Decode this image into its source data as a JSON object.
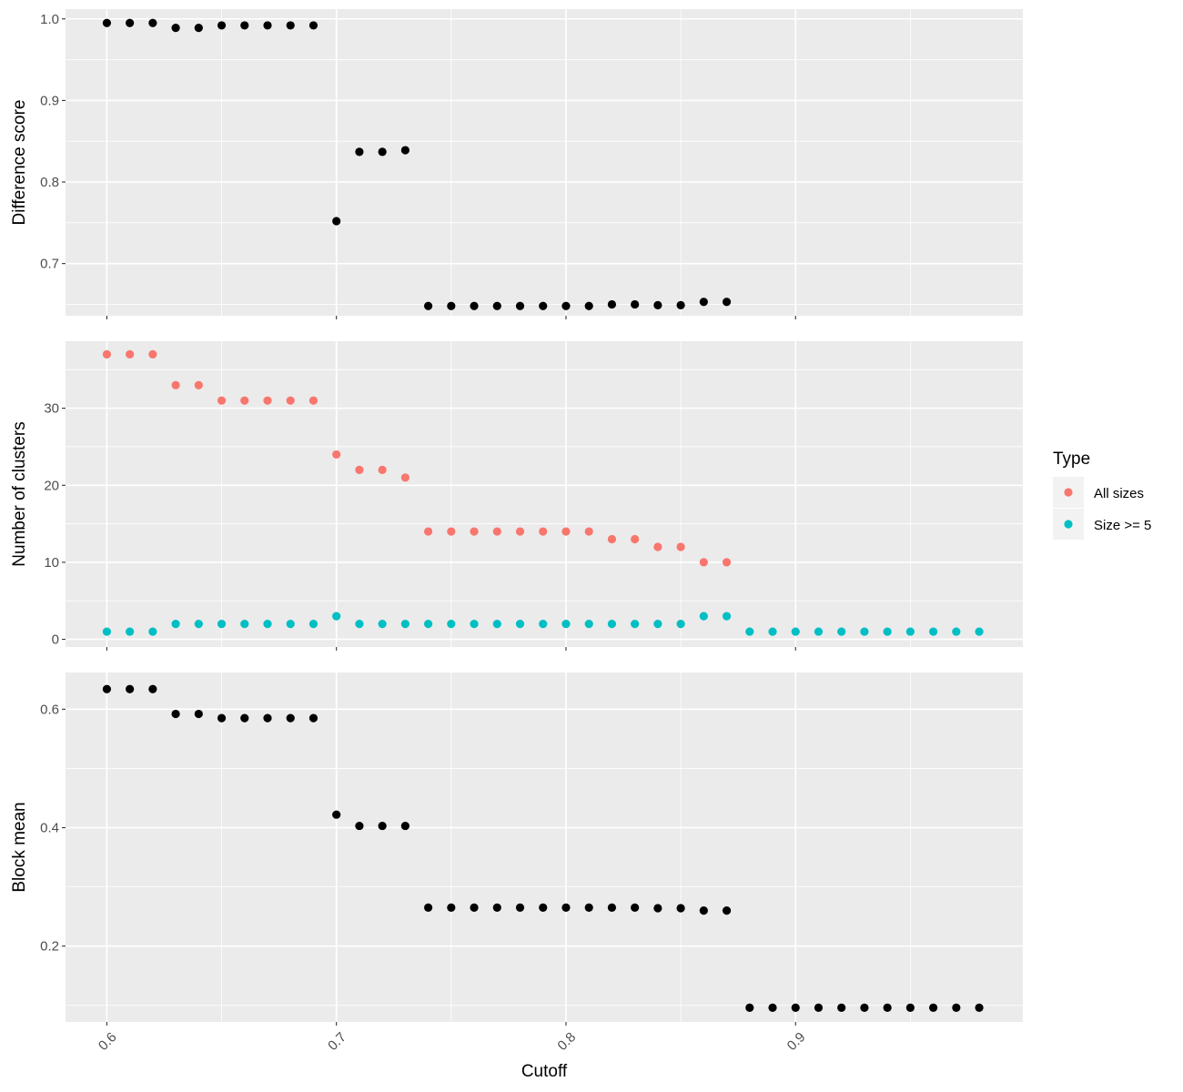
{
  "chart_data": [
    {
      "type": "scatter",
      "xlabel": "",
      "ylabel": "Difference score",
      "xlim": [
        0.582,
        0.999
      ],
      "ylim": [
        0.636,
        1.012
      ],
      "yticks": [
        0.7,
        0.8,
        0.9,
        1.0
      ],
      "ytick_labels": [
        "0.7",
        "0.8",
        "0.9",
        "1.0"
      ],
      "xticks": [
        0.6,
        0.7,
        0.8,
        0.9
      ],
      "grid": true,
      "series": [
        {
          "color": "#000000",
          "x": [
            0.6,
            0.61,
            0.62,
            0.63,
            0.64,
            0.65,
            0.66,
            0.67,
            0.68,
            0.69,
            0.7,
            0.71,
            0.72,
            0.73,
            0.74,
            0.75,
            0.76,
            0.77,
            0.78,
            0.79,
            0.8,
            0.81,
            0.82,
            0.83,
            0.84,
            0.85,
            0.86,
            0.87
          ],
          "y": [
            0.995,
            0.995,
            0.995,
            0.989,
            0.989,
            0.992,
            0.992,
            0.992,
            0.992,
            0.992,
            0.752,
            0.837,
            0.837,
            0.839,
            0.648,
            0.648,
            0.648,
            0.648,
            0.648,
            0.648,
            0.648,
            0.648,
            0.65,
            0.65,
            0.649,
            0.649,
            0.653,
            0.653
          ]
        }
      ]
    },
    {
      "type": "scatter",
      "xlabel": "",
      "ylabel": "Number of clusters",
      "xlim": [
        0.582,
        0.999
      ],
      "ylim": [
        -1.0,
        38.7
      ],
      "yticks": [
        0,
        10,
        20,
        30
      ],
      "ytick_labels": [
        "0",
        "10",
        "20",
        "30"
      ],
      "xticks": [
        0.6,
        0.7,
        0.8,
        0.9
      ],
      "grid": true,
      "legend": {
        "title": "Type",
        "position": "right",
        "entries": [
          {
            "label": "All sizes",
            "color": "#F8766D"
          },
          {
            "label": "Size >= 5",
            "color": "#00BFC4"
          }
        ]
      },
      "series": [
        {
          "name": "All sizes",
          "color": "#F8766D",
          "x": [
            0.6,
            0.61,
            0.62,
            0.63,
            0.64,
            0.65,
            0.66,
            0.67,
            0.68,
            0.69,
            0.7,
            0.71,
            0.72,
            0.73,
            0.74,
            0.75,
            0.76,
            0.77,
            0.78,
            0.79,
            0.8,
            0.81,
            0.82,
            0.83,
            0.84,
            0.85,
            0.86,
            0.87
          ],
          "y": [
            37,
            37,
            37,
            33,
            33,
            31,
            31,
            31,
            31,
            31,
            24,
            22,
            22,
            21,
            14,
            14,
            14,
            14,
            14,
            14,
            14,
            14,
            13,
            13,
            12,
            12,
            10,
            10
          ]
        },
        {
          "name": "Size >= 5",
          "color": "#00BFC4",
          "x": [
            0.6,
            0.61,
            0.62,
            0.63,
            0.64,
            0.65,
            0.66,
            0.67,
            0.68,
            0.69,
            0.7,
            0.71,
            0.72,
            0.73,
            0.74,
            0.75,
            0.76,
            0.77,
            0.78,
            0.79,
            0.8,
            0.81,
            0.82,
            0.83,
            0.84,
            0.85,
            0.86,
            0.87,
            0.88,
            0.89,
            0.9,
            0.91,
            0.92,
            0.93,
            0.94,
            0.95,
            0.96,
            0.97,
            0.98
          ],
          "y": [
            1,
            1,
            1,
            2,
            2,
            2,
            2,
            2,
            2,
            2,
            3,
            2,
            2,
            2,
            2,
            2,
            2,
            2,
            2,
            2,
            2,
            2,
            2,
            2,
            2,
            2,
            3,
            3,
            1,
            1,
            1,
            1,
            1,
            1,
            1,
            1,
            1,
            1,
            1
          ]
        }
      ]
    },
    {
      "type": "scatter",
      "xlabel": "Cutoff",
      "ylabel": "Block mean",
      "xlim": [
        0.582,
        0.999
      ],
      "ylim": [
        0.072,
        0.662
      ],
      "yticks": [
        0.2,
        0.4,
        0.6
      ],
      "ytick_labels": [
        "0.2",
        "0.4",
        "0.6"
      ],
      "xticks": [
        0.6,
        0.7,
        0.8,
        0.9
      ],
      "xtick_labels": [
        "0.6",
        "0.7",
        "0.8",
        "0.9"
      ],
      "grid": true,
      "series": [
        {
          "color": "#000000",
          "x": [
            0.6,
            0.61,
            0.62,
            0.63,
            0.64,
            0.65,
            0.66,
            0.67,
            0.68,
            0.69,
            0.7,
            0.71,
            0.72,
            0.73,
            0.74,
            0.75,
            0.76,
            0.77,
            0.78,
            0.79,
            0.8,
            0.81,
            0.82,
            0.83,
            0.84,
            0.85,
            0.86,
            0.87,
            0.88,
            0.89,
            0.9,
            0.91,
            0.92,
            0.93,
            0.94,
            0.95,
            0.96,
            0.97,
            0.98
          ],
          "y": [
            0.634,
            0.634,
            0.634,
            0.592,
            0.592,
            0.585,
            0.585,
            0.585,
            0.585,
            0.585,
            0.422,
            0.403,
            0.403,
            0.403,
            0.265,
            0.265,
            0.265,
            0.265,
            0.265,
            0.265,
            0.265,
            0.265,
            0.265,
            0.265,
            0.264,
            0.264,
            0.26,
            0.26,
            0.096,
            0.096,
            0.096,
            0.096,
            0.096,
            0.096,
            0.096,
            0.096,
            0.096,
            0.096,
            0.096
          ]
        }
      ]
    }
  ]
}
